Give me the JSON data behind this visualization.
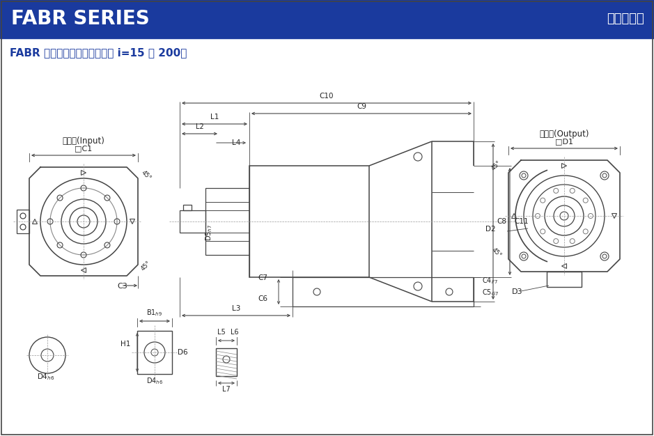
{
  "header_bg_color": "#1a3a9e",
  "header_text_left": "FABR SERIES",
  "header_text_right": "行星减速机",
  "header_text_color": "#ffffff",
  "subtitle": "FABR 系列尺寸（双节，减速比 i=15 ～ 200）",
  "subtitle_color": "#1a3a9e",
  "bg_color": "#ffffff",
  "line_color": "#444444",
  "dim_line_color": "#444444",
  "text_color": "#222222"
}
